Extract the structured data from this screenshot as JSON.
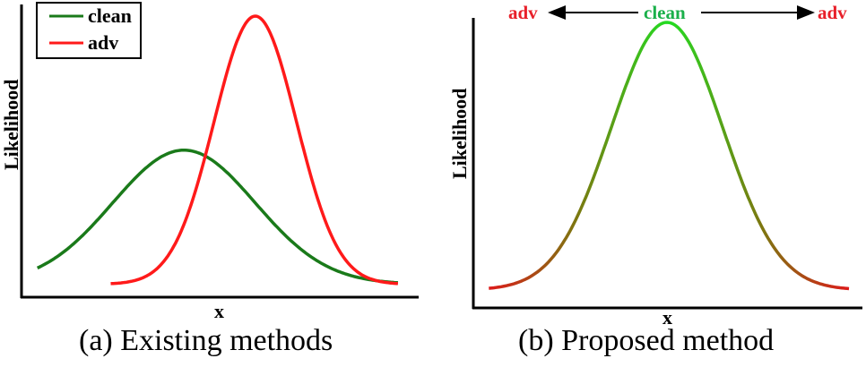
{
  "chart_data": [
    {
      "type": "line",
      "caption": "(a) Existing methods",
      "xlabel": "x",
      "ylabel": "Likelihood",
      "grid": false,
      "legend_position": "top-left",
      "xlim": [
        0,
        10
      ],
      "ylim": [
        0,
        1
      ],
      "series": [
        {
          "name": "clean",
          "color": "#1a7a1a",
          "distribution": "gaussian",
          "mean": 4.1,
          "sd": 1.8,
          "peak": 0.52,
          "baseline": 0.04,
          "x_range": [
            0.4,
            9.5
          ]
        },
        {
          "name": "adv",
          "color": "#ff1a1a",
          "distribution": "gaussian",
          "mean": 5.9,
          "sd": 1.04,
          "peak": 1.0,
          "baseline": 0.04,
          "x_range": [
            2.25,
            9.5
          ]
        }
      ]
    },
    {
      "type": "line",
      "caption": "(b) Proposed method",
      "xlabel": "x",
      "ylabel": "Likelihood",
      "grid": false,
      "xlim": [
        0,
        10
      ],
      "ylim": [
        0,
        1
      ],
      "annotations": {
        "left": "adv",
        "center": "clean",
        "right": "adv"
      },
      "colors": {
        "center": "#22dd22",
        "edges": "#dd1a1a",
        "adv_text": "#e8202a",
        "clean_text": "#1ab04a"
      },
      "series": [
        {
          "distribution": "gaussian",
          "mean": 5.0,
          "sd": 1.44,
          "peak": 1.0,
          "baseline": 0.06,
          "x_range": [
            0.4,
            9.7
          ]
        }
      ]
    }
  ]
}
